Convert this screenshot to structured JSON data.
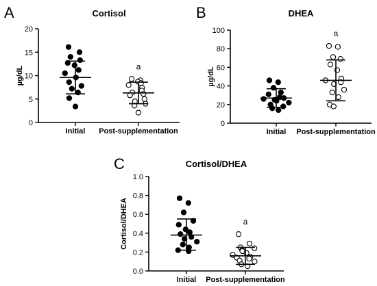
{
  "chart_data": [
    {
      "type": "scatter",
      "panel": "A",
      "title": "Cortisol",
      "ylabel": "µg/dL",
      "xlabel": "",
      "ylim": [
        0,
        20
      ],
      "yticks": [
        "0",
        "5",
        "10",
        "15",
        "20"
      ],
      "categories": [
        "Initial",
        "Post-supplementation"
      ],
      "series": [
        {
          "category": "Initial",
          "marker": "filled",
          "points": [
            16.1,
            15.0,
            14.0,
            13.3,
            12.7,
            12.2,
            11.2,
            10.5,
            9.6,
            8.6,
            7.8,
            7.2,
            6.4,
            5.2,
            3.4
          ],
          "mean": 9.6,
          "sd_low": 6.1,
          "sd_high": 13.1
        },
        {
          "category": "Post-supplementation",
          "marker": "open",
          "points": [
            9.3,
            9.0,
            8.7,
            8.4,
            8.0,
            7.4,
            6.8,
            6.4,
            6.1,
            5.8,
            5.0,
            4.5,
            4.0,
            3.6,
            2.1
          ],
          "mean": 6.3,
          "sd_low": 4.0,
          "sd_high": 8.6,
          "annotation": "a"
        }
      ]
    },
    {
      "type": "scatter",
      "panel": "B",
      "title": "DHEA",
      "ylabel": "µg/dL",
      "xlabel": "",
      "ylim": [
        0,
        100
      ],
      "yticks": [
        "0",
        "20",
        "40",
        "60",
        "80",
        "100"
      ],
      "categories": [
        "Initial",
        "Post-supplementation"
      ],
      "series": [
        {
          "category": "Initial",
          "marker": "filled",
          "points": [
            46,
            44,
            38,
            33,
            31,
            28,
            27,
            26,
            25,
            24,
            22,
            20,
            18,
            16,
            14
          ],
          "mean": 27,
          "sd_low": 17,
          "sd_high": 37
        },
        {
          "category": "Post-supplementation",
          "marker": "open",
          "points": [
            83,
            82,
            71,
            69,
            63,
            57,
            48,
            46,
            44,
            42,
            36,
            33,
            28,
            20,
            18
          ],
          "mean": 46,
          "sd_low": 24,
          "sd_high": 68,
          "annotation": "a"
        }
      ]
    },
    {
      "type": "scatter",
      "panel": "C",
      "title": "Cortisol/DHEA",
      "ylabel": "Cortisol/DHEA",
      "xlabel": "",
      "ylim": [
        0,
        1.0
      ],
      "yticks": [
        "0.0",
        "0.2",
        "0.4",
        "0.6",
        "0.8",
        "1.0"
      ],
      "categories": [
        "Initial",
        "Post-supplementation"
      ],
      "series": [
        {
          "category": "Initial",
          "marker": "filled",
          "points": [
            0.77,
            0.72,
            0.62,
            0.53,
            0.49,
            0.44,
            0.41,
            0.39,
            0.36,
            0.34,
            0.31,
            0.28,
            0.25,
            0.22,
            0.21
          ],
          "mean": 0.38,
          "sd_low": 0.22,
          "sd_high": 0.55
        },
        {
          "category": "Post-supplementation",
          "marker": "open",
          "points": [
            0.39,
            0.29,
            0.25,
            0.24,
            0.22,
            0.21,
            0.19,
            0.17,
            0.15,
            0.14,
            0.13,
            0.11,
            0.1,
            0.07,
            0.05
          ],
          "mean": 0.16,
          "sd_low": 0.07,
          "sd_high": 0.25,
          "annotation": "a"
        }
      ]
    }
  ]
}
